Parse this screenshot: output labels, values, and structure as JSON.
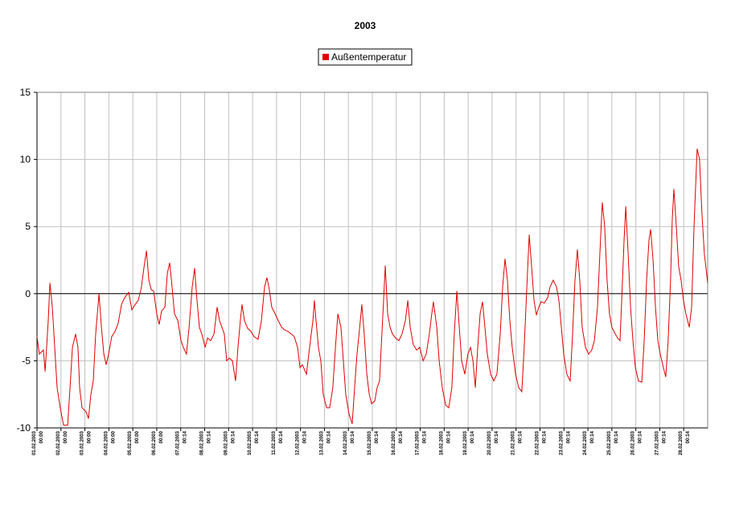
{
  "chart_data": {
    "type": "line",
    "title": "2003",
    "x": [
      0,
      0.1,
      0.27,
      0.34,
      0.47,
      0.54,
      0.64,
      0.74,
      0.84,
      0.97,
      1.11,
      1.28,
      1.38,
      1.48,
      1.61,
      1.71,
      1.78,
      1.88,
      2.05,
      2.15,
      2.25,
      2.35,
      2.45,
      2.59,
      2.69,
      2.79,
      2.89,
      2.99,
      3.12,
      3.26,
      3.39,
      3.53,
      3.66,
      3.83,
      3.96,
      4.1,
      4.23,
      4.36,
      4.47,
      4.57,
      4.67,
      4.77,
      4.87,
      5.0,
      5.1,
      5.2,
      5.34,
      5.44,
      5.54,
      5.64,
      5.74,
      5.88,
      6.01,
      6.11,
      6.24,
      6.35,
      6.48,
      6.58,
      6.68,
      6.78,
      6.88,
      7.02,
      7.12,
      7.25,
      7.39,
      7.52,
      7.62,
      7.72,
      7.82,
      7.92,
      8.03,
      8.16,
      8.29,
      8.39,
      8.49,
      8.56,
      8.66,
      8.8,
      8.93,
      9.06,
      9.23,
      9.37,
      9.5,
      9.6,
      9.7,
      9.8,
      9.94,
      10.07,
      10.21,
      10.34,
      10.47,
      10.61,
      10.74,
      10.88,
      10.98,
      11.08,
      11.25,
      11.38,
      11.52,
      11.58,
      11.65,
      11.75,
      11.85,
      11.95,
      12.09,
      12.22,
      12.35,
      12.46,
      12.56,
      12.69,
      12.79,
      12.89,
      13.03,
      13.16,
      13.26,
      13.36,
      13.5,
      13.56,
      13.66,
      13.77,
      13.87,
      13.97,
      14.1,
      14.2,
      14.3,
      14.37,
      14.47,
      14.54,
      14.64,
      14.74,
      14.84,
      14.97,
      15.11,
      15.24,
      15.38,
      15.48,
      15.58,
      15.71,
      15.85,
      15.98,
      16.12,
      16.25,
      16.38,
      16.48,
      16.55,
      16.69,
      16.79,
      16.92,
      17.06,
      17.19,
      17.32,
      17.42,
      17.53,
      17.63,
      17.73,
      17.86,
      17.99,
      18.1,
      18.2,
      18.3,
      18.4,
      18.5,
      18.6,
      18.7,
      18.8,
      18.94,
      19.07,
      19.2,
      19.34,
      19.44,
      19.54,
      19.64,
      19.74,
      19.84,
      19.98,
      20.11,
      20.24,
      20.34,
      20.45,
      20.55,
      20.65,
      20.75,
      20.85,
      20.95,
      21.05,
      21.18,
      21.32,
      21.42,
      21.55,
      21.69,
      21.79,
      21.89,
      21.99,
      22.12,
      22.26,
      22.36,
      22.46,
      22.56,
      22.66,
      22.76,
      22.9,
      23.03,
      23.16,
      23.27,
      23.4,
      23.5,
      23.6,
      23.7,
      23.8,
      23.9,
      24.0,
      24.14,
      24.24,
      24.34,
      24.41,
      24.51,
      24.58,
      24.68,
      24.78,
      24.88,
      24.98,
      25.11,
      25.25,
      25.35,
      25.45,
      25.55,
      25.62,
      25.72,
      25.82,
      25.92,
      26.02,
      26.15,
      26.25,
      26.35,
      26.45,
      26.52,
      26.59,
      26.69,
      26.79,
      26.89,
      26.99,
      27.09,
      27.23,
      27.33,
      27.43,
      27.56,
      27.66,
      27.76,
      27.86,
      28.0
    ],
    "series": [
      {
        "name": "Außentemperatur",
        "color": "#e00000",
        "values": [
          -3.2,
          -4.5,
          -4.2,
          -5.8,
          -2,
          0.8,
          -1,
          -4,
          -7,
          -8.5,
          -9.8,
          -9.8,
          -7,
          -4,
          -3,
          -4,
          -7,
          -8.5,
          -8.8,
          -9.3,
          -7.5,
          -6.5,
          -3,
          0,
          -2.5,
          -4.5,
          -5.3,
          -4.5,
          -3.2,
          -2.8,
          -2.2,
          -0.8,
          -0.3,
          0.1,
          -1.2,
          -0.8,
          -0.5,
          0.5,
          2,
          3.2,
          1,
          0.3,
          0.2,
          -1.5,
          -2.3,
          -1.3,
          -1,
          1.5,
          2.3,
          0.5,
          -1.5,
          -2,
          -3.5,
          -4,
          -4.5,
          -2.5,
          0.5,
          1.9,
          -0.5,
          -2.5,
          -3,
          -4,
          -3.3,
          -3.5,
          -3,
          -1,
          -2,
          -2.5,
          -3,
          -5,
          -4.8,
          -5,
          -6.5,
          -4,
          -2,
          -0.8,
          -2,
          -2.6,
          -2.8,
          -3.2,
          -3.4,
          -2,
          0.5,
          1.2,
          0.3,
          -1,
          -1.5,
          -2,
          -2.5,
          -2.7,
          -2.8,
          -3,
          -3.2,
          -4,
          -5.5,
          -5.3,
          -6,
          -4,
          -2,
          -0.5,
          -2,
          -4,
          -5,
          -7.5,
          -8.5,
          -8.5,
          -7,
          -4,
          -1.5,
          -2.5,
          -5,
          -7.5,
          -9,
          -9.7,
          -7,
          -4.5,
          -2,
          -0.8,
          -3,
          -6,
          -7.5,
          -8.2,
          -8,
          -7,
          -6.5,
          -4,
          -0.5,
          2.1,
          -1.5,
          -2.5,
          -3,
          -3.3,
          -3.5,
          -3,
          -2,
          -0.5,
          -2.5,
          -3.8,
          -4.2,
          -4,
          -5,
          -4.5,
          -3,
          -1.5,
          -0.6,
          -2.5,
          -5,
          -7,
          -8.3,
          -8.5,
          -7,
          -3,
          0.2,
          -2.5,
          -5,
          -6,
          -4.5,
          -4,
          -5,
          -7,
          -4,
          -1.5,
          -0.6,
          -2.5,
          -4.5,
          -6,
          -6.5,
          -6,
          -3,
          0.5,
          2.6,
          1,
          -2,
          -4,
          -6,
          -7,
          -7.3,
          -4,
          0.5,
          4.4,
          2,
          -0.5,
          -1.6,
          -1,
          -0.6,
          -0.7,
          -0.3,
          0.5,
          1,
          0.5,
          -0.5,
          -2.5,
          -4.5,
          -6,
          -6.5,
          -3,
          1,
          3.3,
          1,
          -2.5,
          -4,
          -4.5,
          -4.2,
          -3.5,
          -1,
          3,
          6.8,
          5,
          1,
          -1.5,
          -2.5,
          -3,
          -3.3,
          -3.5,
          -0.5,
          4,
          6.5,
          3,
          -1,
          -3.5,
          -5.5,
          -6.5,
          -6.6,
          -3.5,
          1,
          4,
          4.8,
          2.5,
          -1,
          -3.5,
          -4.5,
          -5.5,
          -6.2,
          -3.5,
          1,
          5.5,
          7.8,
          5,
          2,
          1,
          -0.5,
          -1.5,
          -2.5,
          -1,
          5,
          10.8,
          10,
          6,
          3,
          0.8
        ]
      }
    ],
    "xlim": [
      0,
      28
    ],
    "xticks": [
      {
        "value": 0,
        "label": "01.02.2003 00:00"
      },
      {
        "value": 1,
        "label": "02.02.2003 00:00"
      },
      {
        "value": 2,
        "label": "03.02.2003 00:00"
      },
      {
        "value": 3,
        "label": "04.02.2003 00:00"
      },
      {
        "value": 4,
        "label": "05.02.2003 00:00"
      },
      {
        "value": 5,
        "label": "06.02.2003 00:00"
      },
      {
        "value": 6,
        "label": "07.02.2003 00:14"
      },
      {
        "value": 7,
        "label": "08.02.2003 00:14"
      },
      {
        "value": 8,
        "label": "09.02.2003 00:14"
      },
      {
        "value": 9,
        "label": "10.02.2003 00:14"
      },
      {
        "value": 10,
        "label": "11.02.2003 00:14"
      },
      {
        "value": 11,
        "label": "12.02.2003 00:14"
      },
      {
        "value": 12,
        "label": "13.02.2003 00:14"
      },
      {
        "value": 13,
        "label": "14.02.2003 00:14"
      },
      {
        "value": 14,
        "label": "15.02.2003 00:14"
      },
      {
        "value": 15,
        "label": "16.02.2003 00:14"
      },
      {
        "value": 16,
        "label": "17.02.2003 00:14"
      },
      {
        "value": 17,
        "label": "18.02.2003 00:14"
      },
      {
        "value": 18,
        "label": "19.02.2003 00:14"
      },
      {
        "value": 19,
        "label": "20.02.2003 00:14"
      },
      {
        "value": 20,
        "label": "21.02.2003 00:14"
      },
      {
        "value": 21,
        "label": "22.02.2003 00:14"
      },
      {
        "value": 22,
        "label": "23.02.2003 00:14"
      },
      {
        "value": 23,
        "label": "24.02.2003 00:14"
      },
      {
        "value": 24,
        "label": "25.02.2003 00:14"
      },
      {
        "value": 25,
        "label": "26.02.2003 00:14"
      },
      {
        "value": 26,
        "label": "27.02.2003 00:14"
      },
      {
        "value": 27,
        "label": "28.02.2003 00:14"
      }
    ],
    "ylim": [
      -10,
      15
    ],
    "yticks": [
      -10,
      -5,
      0,
      5,
      10,
      15
    ],
    "grid": true,
    "zero_line": true,
    "legend": "top"
  }
}
